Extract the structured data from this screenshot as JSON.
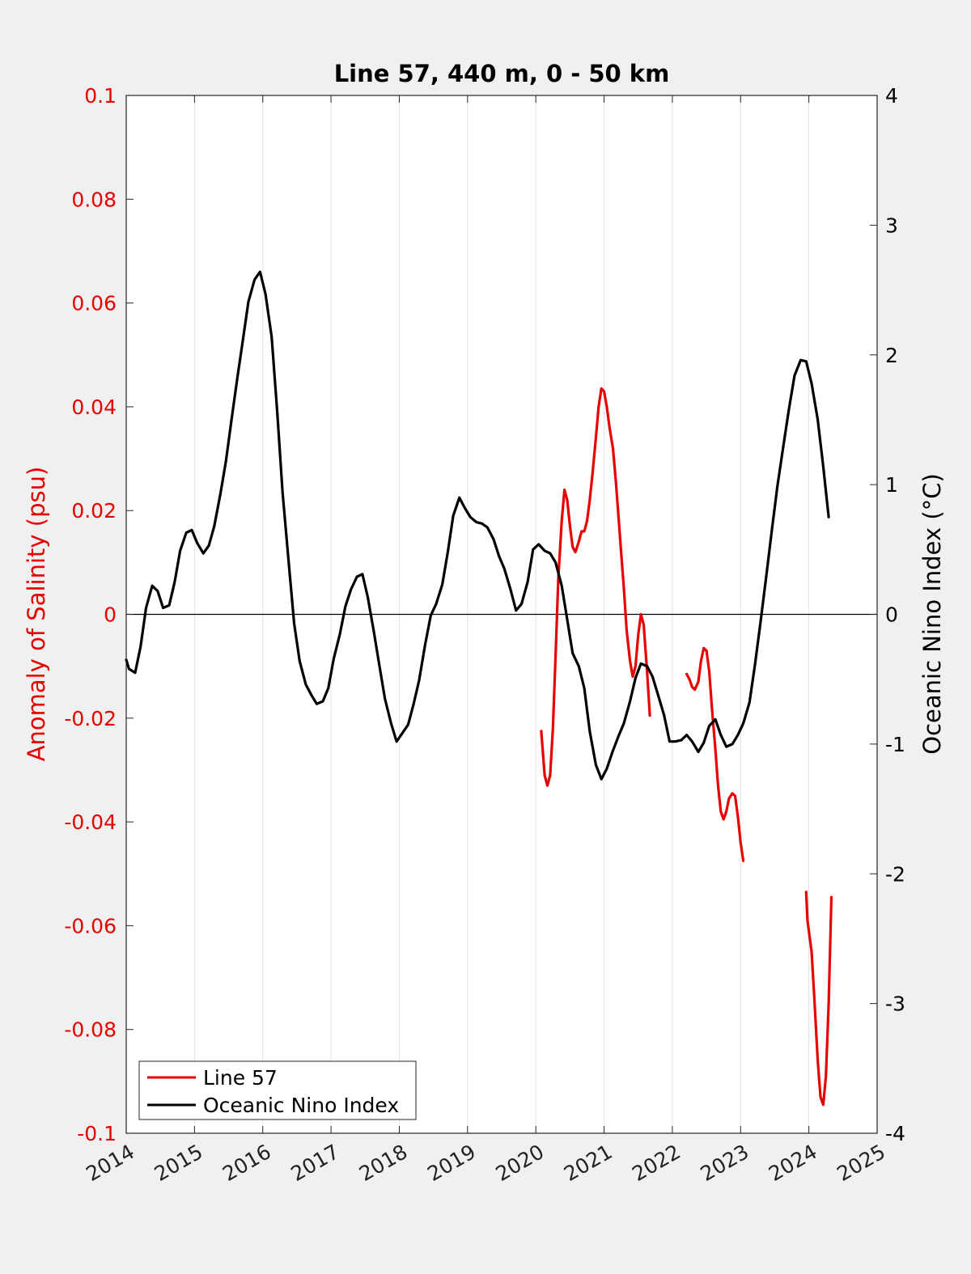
{
  "chart_data": {
    "type": "line",
    "title": "Line 57, 440 m, 0 - 50 km",
    "ylabel_left": "Anomaly of Salinity (psu)",
    "ylabel_right": "Oceanic Nino Index (°C)",
    "xlim": [
      2014,
      2025
    ],
    "ylim_left": [
      -0.1,
      0.1
    ],
    "ylim_right": [
      -4,
      4
    ],
    "x_ticks": [
      "2014",
      "2015",
      "2016",
      "2017",
      "2018",
      "2019",
      "2020",
      "2021",
      "2022",
      "2023",
      "2024",
      "2025"
    ],
    "y_left_ticks": [
      "0.1",
      "0.08",
      "0.06",
      "0.04",
      "0.02",
      "0",
      "-0.02",
      "-0.04",
      "-0.06",
      "-0.08",
      "-0.1"
    ],
    "y_right_ticks": [
      "4",
      "3",
      "2",
      "1",
      "0",
      "-1",
      "-2",
      "-3",
      "-4"
    ],
    "grid": "vertical",
    "legend_position": "bottom-left",
    "series": [
      {
        "name": "Line 57",
        "color": "#e60000",
        "axis": "left",
        "segments": [
          [
            [
              2020.08,
              -0.0225
            ],
            [
              2020.13,
              -0.031
            ],
            [
              2020.17,
              -0.033
            ],
            [
              2020.21,
              -0.031
            ],
            [
              2020.25,
              -0.022
            ],
            [
              2020.29,
              -0.008
            ],
            [
              2020.33,
              0.007
            ],
            [
              2020.38,
              0.018
            ],
            [
              2020.42,
              0.024
            ],
            [
              2020.46,
              0.022
            ],
            [
              2020.5,
              0.017
            ],
            [
              2020.54,
              0.013
            ],
            [
              2020.58,
              0.012
            ],
            [
              2020.63,
              0.014
            ],
            [
              2020.67,
              0.016
            ],
            [
              2020.71,
              0.016
            ],
            [
              2020.75,
              0.018
            ],
            [
              2020.79,
              0.022
            ],
            [
              2020.83,
              0.027
            ],
            [
              2020.88,
              0.034
            ],
            [
              2020.92,
              0.04
            ],
            [
              2020.96,
              0.0435
            ],
            [
              2021.0,
              0.043
            ],
            [
              2021.04,
              0.04
            ],
            [
              2021.08,
              0.036
            ],
            [
              2021.13,
              0.032
            ],
            [
              2021.17,
              0.026
            ],
            [
              2021.21,
              0.019
            ],
            [
              2021.25,
              0.012
            ],
            [
              2021.29,
              0.005
            ],
            [
              2021.33,
              -0.003
            ],
            [
              2021.38,
              -0.009
            ],
            [
              2021.42,
              -0.012
            ],
            [
              2021.46,
              -0.01
            ],
            [
              2021.5,
              -0.004
            ],
            [
              2021.54,
              0.0
            ],
            [
              2021.58,
              -0.002
            ],
            [
              2021.63,
              -0.011
            ],
            [
              2021.67,
              -0.0195
            ]
          ],
          [
            [
              2022.21,
              -0.0115
            ],
            [
              2022.25,
              -0.0125
            ],
            [
              2022.29,
              -0.014
            ],
            [
              2022.33,
              -0.0145
            ],
            [
              2022.38,
              -0.013
            ],
            [
              2022.42,
              -0.009
            ],
            [
              2022.46,
              -0.0065
            ],
            [
              2022.5,
              -0.007
            ],
            [
              2022.54,
              -0.011
            ],
            [
              2022.58,
              -0.018
            ],
            [
              2022.63,
              -0.026
            ],
            [
              2022.67,
              -0.033
            ],
            [
              2022.71,
              -0.038
            ],
            [
              2022.75,
              -0.0395
            ],
            [
              2022.79,
              -0.038
            ],
            [
              2022.83,
              -0.0355
            ],
            [
              2022.88,
              -0.0345
            ],
            [
              2022.92,
              -0.035
            ],
            [
              2022.96,
              -0.039
            ],
            [
              2023.0,
              -0.044
            ],
            [
              2023.04,
              -0.0475
            ]
          ],
          [
            [
              2023.96,
              -0.0535
            ],
            [
              2023.98,
              -0.059
            ],
            [
              2024.04,
              -0.065
            ],
            [
              2024.08,
              -0.074
            ],
            [
              2024.13,
              -0.086
            ],
            [
              2024.17,
              -0.093
            ],
            [
              2024.21,
              -0.0945
            ],
            [
              2024.25,
              -0.089
            ],
            [
              2024.29,
              -0.075
            ],
            [
              2024.33,
              -0.0545
            ]
          ]
        ]
      },
      {
        "name": "Oceanic Nino Index",
        "color": "#000000",
        "axis": "right",
        "segments": [
          [
            [
              2014.0,
              -0.35
            ],
            [
              2014.04,
              -0.42
            ],
            [
              2014.13,
              -0.45
            ],
            [
              2014.21,
              -0.25
            ],
            [
              2014.29,
              0.05
            ],
            [
              2014.38,
              0.22
            ],
            [
              2014.46,
              0.18
            ],
            [
              2014.54,
              0.05
            ],
            [
              2014.63,
              0.07
            ],
            [
              2014.71,
              0.25
            ],
            [
              2014.79,
              0.49
            ],
            [
              2014.88,
              0.63
            ],
            [
              2014.96,
              0.65
            ],
            [
              2015.04,
              0.55
            ],
            [
              2015.13,
              0.47
            ],
            [
              2015.21,
              0.53
            ],
            [
              2015.29,
              0.68
            ],
            [
              2015.38,
              0.93
            ],
            [
              2015.46,
              1.18
            ],
            [
              2015.54,
              1.49
            ],
            [
              2015.63,
              1.83
            ],
            [
              2015.71,
              2.12
            ],
            [
              2015.79,
              2.41
            ],
            [
              2015.88,
              2.58
            ],
            [
              2015.96,
              2.64
            ],
            [
              2016.04,
              2.47
            ],
            [
              2016.13,
              2.14
            ],
            [
              2016.21,
              1.58
            ],
            [
              2016.29,
              0.94
            ],
            [
              2016.38,
              0.4
            ],
            [
              2016.46,
              -0.07
            ],
            [
              2016.54,
              -0.36
            ],
            [
              2016.63,
              -0.54
            ],
            [
              2016.71,
              -0.62
            ],
            [
              2016.79,
              -0.69
            ],
            [
              2016.88,
              -0.67
            ],
            [
              2016.96,
              -0.57
            ],
            [
              2017.04,
              -0.34
            ],
            [
              2017.13,
              -0.15
            ],
            [
              2017.21,
              0.06
            ],
            [
              2017.29,
              0.19
            ],
            [
              2017.38,
              0.29
            ],
            [
              2017.46,
              0.31
            ],
            [
              2017.54,
              0.13
            ],
            [
              2017.63,
              -0.14
            ],
            [
              2017.71,
              -0.4
            ],
            [
              2017.79,
              -0.65
            ],
            [
              2017.88,
              -0.84
            ],
            [
              2017.96,
              -0.98
            ],
            [
              2018.04,
              -0.92
            ],
            [
              2018.13,
              -0.85
            ],
            [
              2018.21,
              -0.69
            ],
            [
              2018.29,
              -0.51
            ],
            [
              2018.38,
              -0.23
            ],
            [
              2018.46,
              -0.01
            ],
            [
              2018.54,
              0.08
            ],
            [
              2018.63,
              0.23
            ],
            [
              2018.71,
              0.48
            ],
            [
              2018.79,
              0.76
            ],
            [
              2018.88,
              0.9
            ],
            [
              2018.96,
              0.82
            ],
            [
              2019.04,
              0.75
            ],
            [
              2019.13,
              0.71
            ],
            [
              2019.21,
              0.7
            ],
            [
              2019.29,
              0.67
            ],
            [
              2019.38,
              0.58
            ],
            [
              2019.46,
              0.45
            ],
            [
              2019.54,
              0.35
            ],
            [
              2019.63,
              0.19
            ],
            [
              2019.71,
              0.03
            ],
            [
              2019.79,
              0.08
            ],
            [
              2019.88,
              0.25
            ],
            [
              2019.96,
              0.5
            ],
            [
              2020.04,
              0.54
            ],
            [
              2020.13,
              0.49
            ],
            [
              2020.21,
              0.47
            ],
            [
              2020.29,
              0.4
            ],
            [
              2020.38,
              0.22
            ],
            [
              2020.46,
              -0.04
            ],
            [
              2020.54,
              -0.3
            ],
            [
              2020.63,
              -0.4
            ],
            [
              2020.71,
              -0.57
            ],
            [
              2020.79,
              -0.9
            ],
            [
              2020.88,
              -1.16
            ],
            [
              2020.96,
              -1.27
            ],
            [
              2021.04,
              -1.19
            ],
            [
              2021.13,
              -1.05
            ],
            [
              2021.21,
              -0.94
            ],
            [
              2021.29,
              -0.84
            ],
            [
              2021.38,
              -0.67
            ],
            [
              2021.46,
              -0.49
            ],
            [
              2021.54,
              -0.38
            ],
            [
              2021.63,
              -0.4
            ],
            [
              2021.71,
              -0.48
            ],
            [
              2021.79,
              -0.62
            ],
            [
              2021.88,
              -0.78
            ],
            [
              2021.96,
              -0.98
            ],
            [
              2022.04,
              -0.98
            ],
            [
              2022.13,
              -0.97
            ],
            [
              2022.21,
              -0.93
            ],
            [
              2022.29,
              -0.98
            ],
            [
              2022.38,
              -1.06
            ],
            [
              2022.46,
              -0.99
            ],
            [
              2022.54,
              -0.86
            ],
            [
              2022.63,
              -0.81
            ],
            [
              2022.71,
              -0.93
            ],
            [
              2022.79,
              -1.02
            ],
            [
              2022.88,
              -1.0
            ],
            [
              2022.96,
              -0.93
            ],
            [
              2023.04,
              -0.84
            ],
            [
              2023.13,
              -0.68
            ],
            [
              2023.21,
              -0.39
            ],
            [
              2023.29,
              -0.07
            ],
            [
              2023.38,
              0.31
            ],
            [
              2023.46,
              0.66
            ],
            [
              2023.54,
              0.99
            ],
            [
              2023.63,
              1.31
            ],
            [
              2023.71,
              1.59
            ],
            [
              2023.79,
              1.84
            ],
            [
              2023.88,
              1.96
            ],
            [
              2023.96,
              1.95
            ],
            [
              2024.04,
              1.78
            ],
            [
              2024.13,
              1.5
            ],
            [
              2024.21,
              1.14
            ],
            [
              2024.29,
              0.75
            ]
          ]
        ]
      }
    ]
  }
}
